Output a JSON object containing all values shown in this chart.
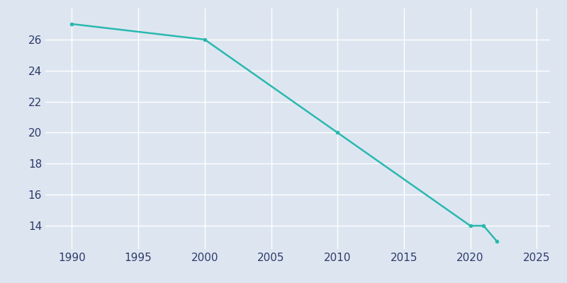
{
  "years": [
    1990,
    2000,
    2010,
    2020,
    2021,
    2022
  ],
  "population": [
    27,
    26,
    20,
    14,
    14,
    13
  ],
  "line_color": "#2ab8b0",
  "marker_color": "#2ab8b0",
  "background_color": "#dde6f0",
  "plot_bg_color": "#dde6f0",
  "grid_color": "#ffffff",
  "tick_label_color": "#2d3a6b",
  "xlim": [
    1988,
    2026
  ],
  "ylim": [
    12.5,
    28
  ],
  "xticks": [
    1990,
    1995,
    2000,
    2005,
    2010,
    2015,
    2020,
    2025
  ],
  "yticks": [
    14,
    16,
    18,
    20,
    22,
    24,
    26
  ]
}
